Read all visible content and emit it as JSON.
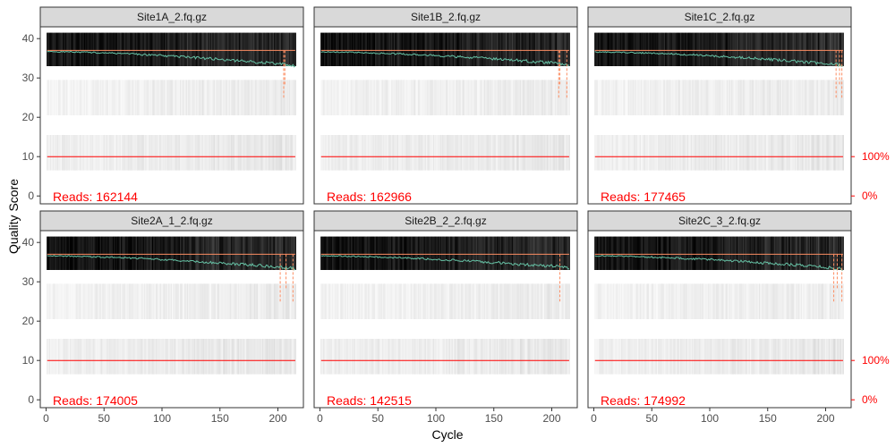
{
  "chart_data": {
    "type": "heatmap",
    "xlabel": "Cycle",
    "ylabel": "Quality Score",
    "xlim": [
      -5,
      222
    ],
    "ylim": [
      -2,
      43
    ],
    "x_ticks": [
      0,
      50,
      100,
      150,
      200
    ],
    "y_ticks": [
      0,
      10,
      20,
      30,
      40
    ],
    "right_axis_labels": [
      "100%",
      "0%"
    ],
    "reads_label": "Reads: ",
    "colors": {
      "mean_line": "#66C2A5",
      "median_line": "#FC8D62",
      "quartile_line": "#FC8D62",
      "reads_line": "#ff0000",
      "text_red": "#ff0000",
      "strip_bg": "#d9d9d9",
      "panel_border": "#333333"
    },
    "cycles": 215,
    "panels": [
      {
        "name": "Site1A_2.fq.gz",
        "reads": "162144",
        "mean_start": 36.7,
        "mean_end": 33.2,
        "dropouts": [
          205,
          206
        ]
      },
      {
        "name": "Site1B_2.fq.gz",
        "reads": "162966",
        "mean_start": 36.6,
        "mean_end": 33.5,
        "dropouts": [
          206,
          207,
          213
        ]
      },
      {
        "name": "Site1C_2.fq.gz",
        "reads": "177465",
        "mean_start": 36.6,
        "mean_end": 33.3,
        "dropouts": [
          209,
          212,
          214
        ]
      },
      {
        "name": "Site2A_1_2.fq.gz",
        "reads": "174005",
        "mean_start": 36.6,
        "mean_end": 33.4,
        "dropouts": [
          202,
          207,
          213
        ]
      },
      {
        "name": "Site2B_2_2.fq.gz",
        "reads": "142515",
        "mean_start": 36.6,
        "mean_end": 33.6,
        "dropouts": [
          207
        ]
      },
      {
        "name": "Site2C_3_2.fq.gz",
        "reads": "174992",
        "mean_start": 36.6,
        "mean_end": 33.3,
        "dropouts": [
          207,
          210,
          214
        ]
      }
    ]
  }
}
